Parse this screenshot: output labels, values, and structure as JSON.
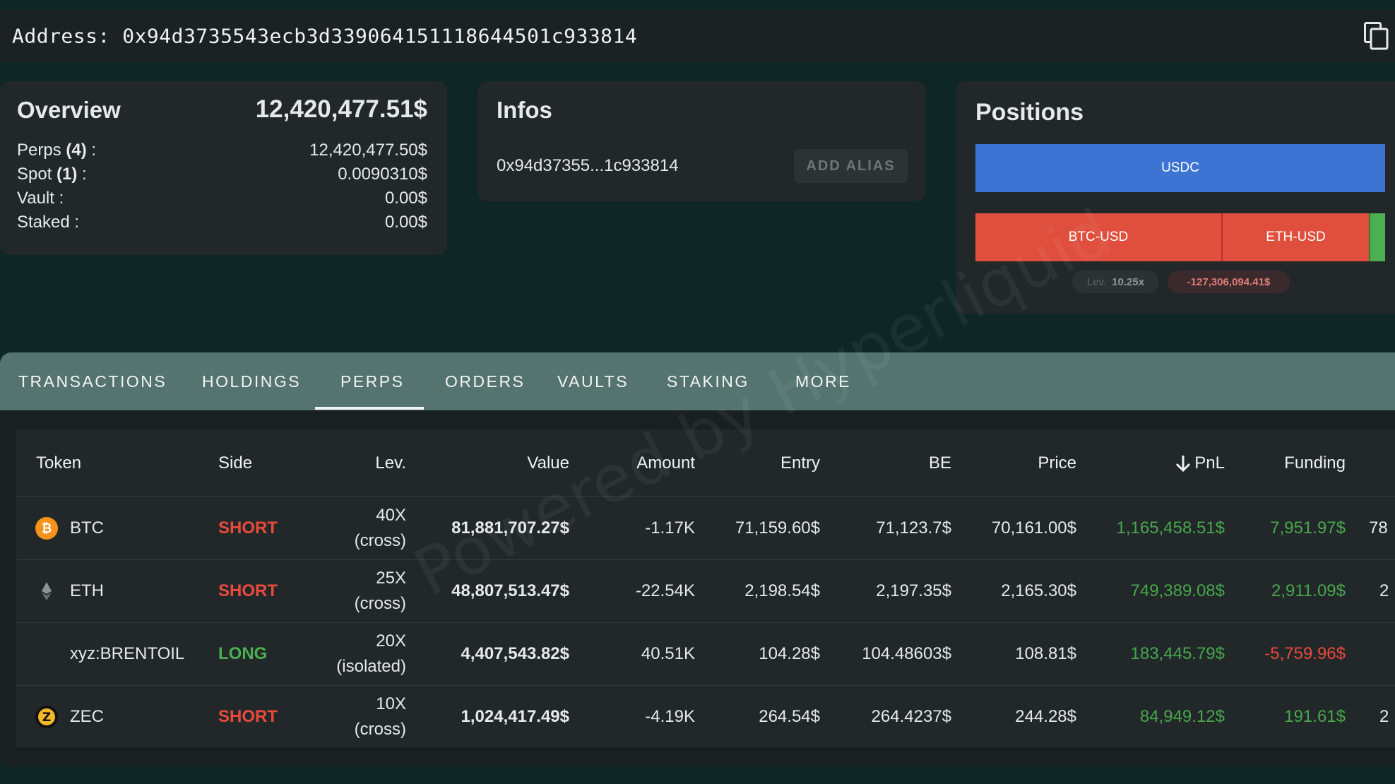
{
  "address_bar": {
    "text": "Address: 0x94d3735543ecb3d339064151118644501c933814",
    "copy_icon": "copy-icon"
  },
  "overview": {
    "title": "Overview",
    "total": "12,420,477.51$",
    "rows": [
      {
        "label": "Perps",
        "count": "(4)",
        "suffix": " :",
        "value": "12,420,477.50$"
      },
      {
        "label": "Spot",
        "count": "(1)",
        "suffix": " :",
        "value": "0.0090310$"
      },
      {
        "label": "Vault :",
        "count": "",
        "suffix": "",
        "value": "0.00$"
      },
      {
        "label": "Staked :",
        "count": "",
        "suffix": "",
        "value": "0.00$"
      }
    ]
  },
  "infos": {
    "title": "Infos",
    "short_address": "0x94d37355...1c933814",
    "add_alias_label": "ADD ALIAS"
  },
  "positions": {
    "title": "Positions",
    "bars": {
      "usdc": "USDC",
      "btc": "BTC-USD",
      "eth": "ETH-USD"
    },
    "lev_key": "Lev.",
    "lev_value": "10.25x",
    "pnl": "-127,306,094.41$",
    "colors": {
      "usdc": "#3d73d2",
      "short": "#e04f3e",
      "long": "#4caf50"
    }
  },
  "tabs": {
    "items": [
      "TRANSACTIONS",
      "HOLDINGS",
      "PERPS",
      "ORDERS",
      "VAULTS",
      "STAKING",
      "MORE"
    ],
    "active": "PERPS"
  },
  "table": {
    "headers": {
      "token": "Token",
      "side": "Side",
      "lev": "Lev.",
      "value": "Value",
      "amount": "Amount",
      "entry": "Entry",
      "be": "BE",
      "price": "Price",
      "pnl": "PnL",
      "funding": "Funding"
    },
    "sort_icon": "arrow-down-icon",
    "rows": [
      {
        "token": "BTC",
        "icon": "btc-icon",
        "side": "SHORT",
        "lev": "40X",
        "lev_mode": "(cross)",
        "value": "81,881,707.27$",
        "amount": "-1.17K",
        "entry": "71,159.60$",
        "be": "71,123.7$",
        "price": "70,161.00$",
        "pnl": "1,165,458.51$",
        "funding": "7,951.97$",
        "overflow": "78"
      },
      {
        "token": "ETH",
        "icon": "eth-icon",
        "side": "SHORT",
        "lev": "25X",
        "lev_mode": "(cross)",
        "value": "48,807,513.47$",
        "amount": "-22.54K",
        "entry": "2,198.54$",
        "be": "2,197.35$",
        "price": "2,165.30$",
        "pnl": "749,389.08$",
        "funding": "2,911.09$",
        "overflow": "2"
      },
      {
        "token": "xyz:BRENTOIL",
        "icon": "",
        "side": "LONG",
        "lev": "20X",
        "lev_mode": "(isolated)",
        "value": "4,407,543.82$",
        "amount": "40.51K",
        "entry": "104.28$",
        "be": "104.48603$",
        "price": "108.81$",
        "pnl": "183,445.79$",
        "funding": "-5,759.96$",
        "overflow": ""
      },
      {
        "token": "ZEC",
        "icon": "zec-icon",
        "side": "SHORT",
        "lev": "10X",
        "lev_mode": "(cross)",
        "value": "1,024,417.49$",
        "amount": "-4.19K",
        "entry": "264.54$",
        "be": "264.4237$",
        "price": "244.28$",
        "pnl": "84,949.12$",
        "funding": "191.61$",
        "overflow": "2"
      }
    ],
    "watermark": "Powered by Hyperliquid"
  }
}
